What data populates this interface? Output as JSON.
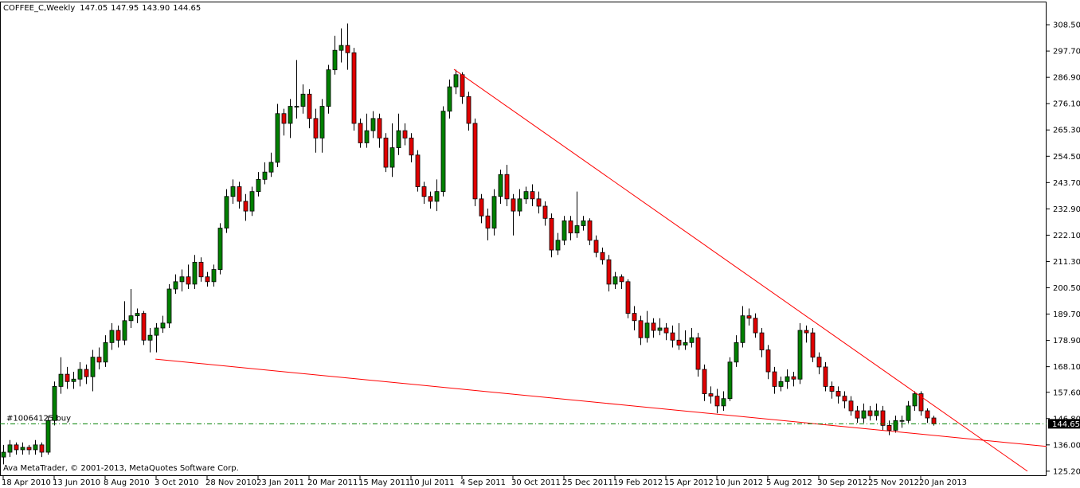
{
  "chart_data": {
    "type": "candlestick",
    "header": {
      "symbol": "COFFEE_C,Weekly",
      "value_labels": [
        "147.05",
        "147.95",
        "143.90",
        "144.65"
      ]
    },
    "footer": "Ava MetaTrader, © 2001-2013, MetaQuotes Software Corp.",
    "up_color": "#008000",
    "down_color": "#e00000",
    "wick_color": "#000000",
    "ylim": [
      123.2,
      318.0
    ],
    "yticks": [
      {
        "value": 308.5,
        "label": "308.50"
      },
      {
        "value": 297.7,
        "label": "297.70"
      },
      {
        "value": 286.9,
        "label": "286.90"
      },
      {
        "value": 276.1,
        "label": "276.10"
      },
      {
        "value": 265.3,
        "label": "265.30"
      },
      {
        "value": 254.5,
        "label": "254.50"
      },
      {
        "value": 243.7,
        "label": "243.70"
      },
      {
        "value": 232.9,
        "label": "232.90"
      },
      {
        "value": 222.1,
        "label": "222.10"
      },
      {
        "value": 211.3,
        "label": "211.30"
      },
      {
        "value": 200.5,
        "label": "200.50"
      },
      {
        "value": 189.7,
        "label": "189.70"
      },
      {
        "value": 178.9,
        "label": "178.90"
      },
      {
        "value": 168.1,
        "label": "168.10"
      },
      {
        "value": 157.6,
        "label": "157.60"
      },
      {
        "value": 146.8,
        "label": "146.80"
      },
      {
        "value": 136,
        "label": "136.00"
      },
      {
        "value": 125.2,
        "label": "125.20"
      }
    ],
    "xticks": [
      {
        "value": 0,
        "label": "18 Apr 2010"
      },
      {
        "value": 8,
        "label": "13 Jun 2010"
      },
      {
        "value": 16,
        "label": "8 Aug 2010"
      },
      {
        "value": 24,
        "label": "3 Oct 2010"
      },
      {
        "value": 32,
        "label": "28 Nov 2010"
      },
      {
        "value": 40,
        "label": "23 Jan 2011"
      },
      {
        "value": 48,
        "label": "20 Mar 2011"
      },
      {
        "value": 56,
        "label": "15 May 2011"
      },
      {
        "value": 64,
        "label": "10 Jul 2011"
      },
      {
        "value": 72,
        "label": "4 Sep 2011"
      },
      {
        "value": 80,
        "label": "30 Oct 2011"
      },
      {
        "value": 88,
        "label": "25 Dec 2011"
      },
      {
        "value": 96,
        "label": "19 Feb 2012"
      },
      {
        "value": 104,
        "label": "15 Apr 2012"
      },
      {
        "value": 112,
        "label": "10 Jun 2012"
      },
      {
        "value": 120,
        "label": "5 Aug 2012"
      },
      {
        "value": 128,
        "label": "30 Sep 2012"
      },
      {
        "value": 136,
        "label": "25 Nov 2012"
      },
      {
        "value": 144,
        "label": "20 Jan 2013"
      }
    ],
    "candles": [
      [
        131,
        136,
        128,
        133
      ],
      [
        133,
        138,
        131,
        136
      ],
      [
        136,
        137,
        132,
        134
      ],
      [
        134,
        137,
        132,
        135
      ],
      [
        135,
        136,
        132,
        134
      ],
      [
        134,
        138,
        132,
        136
      ],
      [
        136,
        137,
        131,
        133
      ],
      [
        133,
        148,
        132,
        146
      ],
      [
        146,
        162,
        144,
        160
      ],
      [
        160,
        172,
        157,
        165
      ],
      [
        165,
        168,
        159,
        162
      ],
      [
        162,
        166,
        159,
        163
      ],
      [
        163,
        170,
        160,
        167
      ],
      [
        167,
        169,
        161,
        164
      ],
      [
        164,
        175,
        158,
        172
      ],
      [
        172,
        176,
        167,
        170
      ],
      [
        170,
        181,
        168,
        178
      ],
      [
        178,
        186,
        175,
        183
      ],
      [
        183,
        185,
        176,
        179
      ],
      [
        179,
        195,
        177,
        187
      ],
      [
        187,
        200,
        184,
        189
      ],
      [
        189,
        192,
        186,
        190
      ],
      [
        190,
        191,
        177,
        179
      ],
      [
        179,
        184,
        174,
        181
      ],
      [
        181,
        186,
        174,
        184
      ],
      [
        184,
        189,
        182,
        186
      ],
      [
        186,
        202,
        184,
        200
      ],
      [
        200,
        206,
        198,
        203
      ],
      [
        203,
        208,
        199,
        205
      ],
      [
        205,
        210,
        200,
        202
      ],
      [
        202,
        214,
        200,
        211
      ],
      [
        211,
        213,
        203,
        205
      ],
      [
        205,
        207,
        201,
        203
      ],
      [
        203,
        210,
        201,
        208
      ],
      [
        208,
        227,
        206,
        225
      ],
      [
        225,
        241,
        223,
        238
      ],
      [
        238,
        245,
        235,
        242
      ],
      [
        242,
        244,
        233,
        236
      ],
      [
        236,
        239,
        228,
        232
      ],
      [
        232,
        242,
        230,
        240
      ],
      [
        240,
        248,
        238,
        245
      ],
      [
        245,
        252,
        243,
        248
      ],
      [
        248,
        256,
        246,
        252
      ],
      [
        252,
        276,
        250,
        272
      ],
      [
        272,
        274,
        263,
        268
      ],
      [
        268,
        278,
        262,
        275
      ],
      [
        275,
        294,
        270,
        275
      ],
      [
        275,
        284,
        272,
        280
      ],
      [
        280,
        282,
        266,
        270
      ],
      [
        270,
        274,
        256,
        262
      ],
      [
        262,
        278,
        256,
        275
      ],
      [
        275,
        292,
        272,
        290
      ],
      [
        290,
        304,
        288,
        298
      ],
      [
        298,
        307,
        293,
        300
      ],
      [
        300,
        309,
        290,
        297
      ],
      [
        297,
        299,
        265,
        268
      ],
      [
        268,
        270,
        258,
        260
      ],
      [
        260,
        272,
        258,
        265
      ],
      [
        265,
        273,
        262,
        270
      ],
      [
        270,
        272,
        258,
        262
      ],
      [
        262,
        264,
        248,
        250
      ],
      [
        250,
        268,
        246,
        258
      ],
      [
        258,
        272,
        255,
        265
      ],
      [
        265,
        268,
        259,
        262
      ],
      [
        262,
        264,
        252,
        255
      ],
      [
        255,
        257,
        240,
        242
      ],
      [
        242,
        244,
        235,
        238
      ],
      [
        238,
        240,
        233,
        236
      ],
      [
        236,
        245,
        232,
        240
      ],
      [
        240,
        275,
        238,
        273
      ],
      [
        273,
        286,
        270,
        283
      ],
      [
        283,
        290,
        280,
        288
      ],
      [
        288,
        289,
        276,
        279
      ],
      [
        279,
        281,
        265,
        268
      ],
      [
        268,
        270,
        234,
        237
      ],
      [
        237,
        239,
        227,
        230
      ],
      [
        230,
        233,
        220,
        225
      ],
      [
        225,
        241,
        222,
        238
      ],
      [
        238,
        249,
        235,
        247
      ],
      [
        247,
        251,
        234,
        237
      ],
      [
        237,
        239,
        222,
        232
      ],
      [
        232,
        241,
        230,
        237
      ],
      [
        237,
        242,
        235,
        240
      ],
      [
        240,
        243,
        234,
        237
      ],
      [
        237,
        240,
        231,
        234
      ],
      [
        234,
        236,
        226,
        229
      ],
      [
        229,
        231,
        213,
        216
      ],
      [
        216,
        223,
        214,
        220
      ],
      [
        220,
        230,
        218,
        228
      ],
      [
        228,
        230,
        220,
        223
      ],
      [
        223,
        240,
        221,
        226
      ],
      [
        226,
        230,
        224,
        228
      ],
      [
        228,
        229,
        218,
        220
      ],
      [
        220,
        222,
        213,
        215
      ],
      [
        215,
        217,
        210,
        212
      ],
      [
        212,
        214,
        199,
        202
      ],
      [
        202,
        207,
        200,
        205
      ],
      [
        205,
        206,
        200,
        203
      ],
      [
        203,
        204,
        188,
        190
      ],
      [
        190,
        193,
        183,
        187
      ],
      [
        187,
        189,
        177,
        180
      ],
      [
        180,
        191,
        178,
        186
      ],
      [
        186,
        188,
        180,
        183
      ],
      [
        183,
        188,
        181,
        184
      ],
      [
        184,
        186,
        179,
        182
      ],
      [
        182,
        185,
        176,
        179
      ],
      [
        179,
        186,
        175,
        177
      ],
      [
        177,
        183,
        175,
        178
      ],
      [
        178,
        184,
        176,
        180
      ],
      [
        180,
        182,
        164,
        167
      ],
      [
        167,
        169,
        154,
        157
      ],
      [
        157,
        160,
        153,
        156
      ],
      [
        156,
        159,
        149,
        152
      ],
      [
        152,
        158,
        150,
        155
      ],
      [
        155,
        172,
        154,
        170
      ],
      [
        170,
        181,
        168,
        178
      ],
      [
        178,
        193,
        176,
        189
      ],
      [
        189,
        192,
        185,
        188
      ],
      [
        188,
        190,
        180,
        182
      ],
      [
        182,
        184,
        172,
        175
      ],
      [
        175,
        177,
        163,
        166
      ],
      [
        166,
        168,
        157,
        160
      ],
      [
        160,
        164,
        158,
        162
      ],
      [
        162,
        167,
        159,
        164
      ],
      [
        164,
        166,
        160,
        163
      ],
      [
        163,
        186,
        161,
        183
      ],
      [
        183,
        185,
        178,
        182
      ],
      [
        182,
        184,
        170,
        172
      ],
      [
        172,
        174,
        165,
        168
      ],
      [
        168,
        170,
        158,
        160
      ],
      [
        160,
        162,
        155,
        158
      ],
      [
        158,
        160,
        153,
        156
      ],
      [
        156,
        158,
        151,
        154
      ],
      [
        154,
        156,
        148,
        150
      ],
      [
        150,
        152,
        145,
        147
      ],
      [
        147,
        153,
        145,
        150
      ],
      [
        150,
        152,
        146,
        148
      ],
      [
        148,
        153,
        146,
        150
      ],
      [
        150,
        152,
        142,
        144
      ],
      [
        144,
        146,
        140,
        142
      ],
      [
        142,
        148,
        141,
        146
      ],
      [
        146,
        148,
        143,
        146
      ],
      [
        146,
        154,
        145,
        152
      ],
      [
        152,
        158,
        150,
        157
      ],
      [
        157,
        158,
        148,
        150
      ],
      [
        150,
        151,
        145,
        147.05
      ],
      [
        147.05,
        147.95,
        143.9,
        144.65
      ]
    ],
    "trendlines": [
      {
        "start": [
          23.9,
          171.2
        ],
        "end": [
          164,
          135.3
        ],
        "color": "#ff0000"
      },
      {
        "start": [
          70.75,
          290.2
        ],
        "end": [
          160.75,
          125.2
        ],
        "color": "#ff0000"
      }
    ],
    "order": {
      "label": "#10064125 buy",
      "price": 144.65,
      "color": "#008000"
    },
    "price_box": {
      "value": 144.65,
      "label": "144.65"
    }
  }
}
